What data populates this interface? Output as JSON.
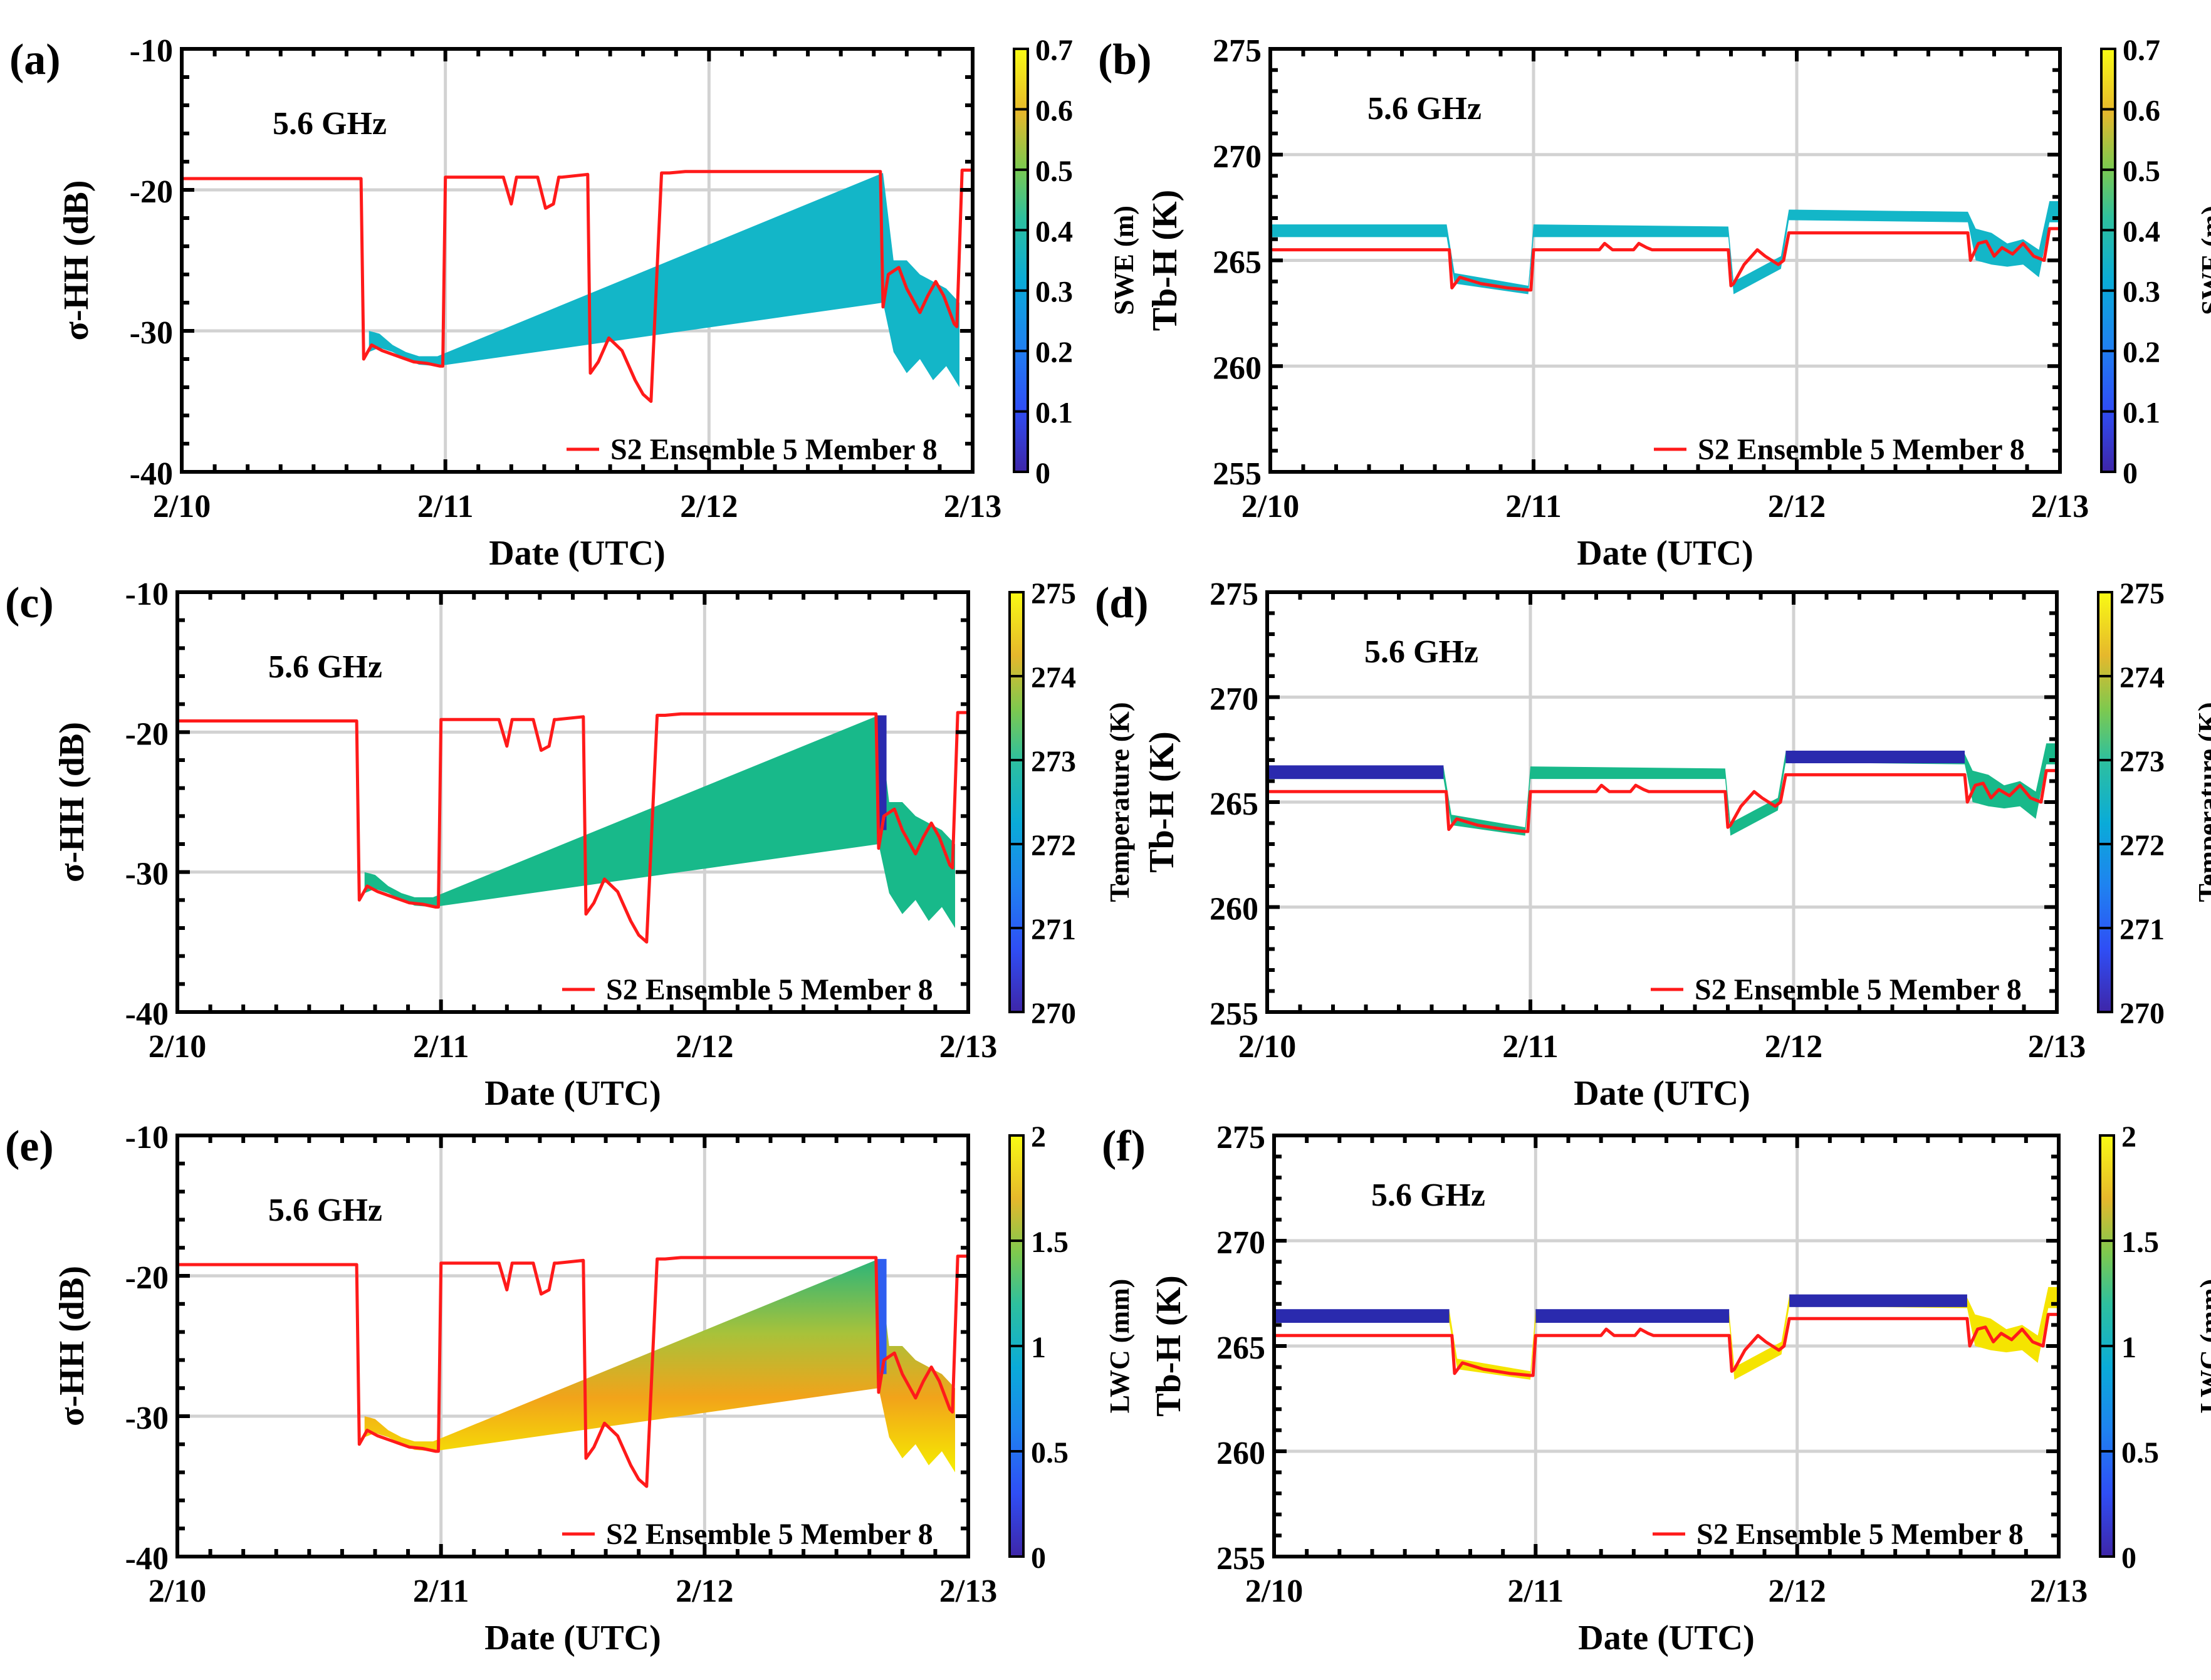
{
  "figure": {
    "legend_label": "S2 Ensemble 5 Member 8",
    "freq_label": "5.6 GHz",
    "x_ticks": [
      "2/10",
      "2/11",
      "2/12",
      "2/13"
    ],
    "xlabel": "Date (UTC)",
    "colors": {
      "red_line": "#ff1a1a",
      "band_cyan": "#13b6c8",
      "band_green": "#18b98a",
      "band_blue": "#2a2aae",
      "band_yellow": "#f5e400",
      "band_orange": "#f2a31a"
    }
  },
  "chart_data": [
    {
      "panel": "(a)",
      "type": "line",
      "quantity": "sigma",
      "color_by": "swe",
      "ylabel": "σ-HH (dB)",
      "ylim": [
        -40,
        -10
      ],
      "yticks": [
        "-10",
        "-20",
        "-30",
        "-40"
      ],
      "xlim": [
        0,
        3
      ],
      "colorbar_label": "SWE (m)",
      "colorbar_ticks": [
        "0",
        "0.1",
        "0.2",
        "0.3",
        "0.4",
        "0.5",
        "0.6",
        "0.7"
      ],
      "series": [
        {
          "name": "S2 Ensemble 5 Member 8",
          "x": [
            0,
            0.68,
            0.69,
            0.72,
            0.76,
            0.82,
            0.88,
            0.93,
            0.98,
            0.99,
            1.0,
            1.22,
            1.25,
            1.27,
            1.28,
            1.35,
            1.38,
            1.41,
            1.43,
            1.44,
            1.54,
            1.55,
            1.58,
            1.62,
            1.67,
            1.72,
            1.75,
            1.78,
            1.82,
            1.85,
            1.91,
            1.94,
            1.95,
            2.65,
            2.66,
            2.68,
            2.72,
            2.75,
            2.8,
            2.83,
            2.86,
            2.89,
            2.93,
            2.94,
            2.96,
            3.0
          ],
          "y": [
            -19.2,
            -19.2,
            -32.0,
            -31.0,
            -31.4,
            -31.8,
            -32.2,
            -32.3,
            -32.5,
            -32.5,
            -19.1,
            -19.1,
            -21.0,
            -19.1,
            -19.1,
            -19.1,
            -21.3,
            -21.0,
            -19.1,
            -19.1,
            -18.9,
            -33.0,
            -32.2,
            -30.5,
            -31.4,
            -33.5,
            -34.5,
            -35.0,
            -18.8,
            -18.8,
            -18.7,
            -18.7,
            -18.7,
            -18.7,
            -28.3,
            -26.0,
            -25.5,
            -27.0,
            -28.7,
            -27.5,
            -26.5,
            -27.5,
            -29.5,
            -29.7,
            -18.6,
            -18.6
          ]
        }
      ],
      "ensemble_band": {
        "x": [
          0.71,
          0.75,
          0.8,
          0.85,
          0.9,
          0.97,
          2.66,
          2.7,
          2.75,
          2.8,
          2.85,
          2.9,
          2.95
        ],
        "upper": [
          -30.0,
          -30.2,
          -31.0,
          -31.5,
          -31.8,
          -31.8,
          -18.8,
          -25.0,
          -25.0,
          -26.0,
          -26.5,
          -27.0,
          -28.0
        ],
        "lower": [
          -31.5,
          -31.2,
          -31.5,
          -32.0,
          -32.4,
          -32.5,
          -28.0,
          -31.5,
          -33.0,
          -32.0,
          -33.5,
          -32.5,
          -34.0
        ]
      }
    },
    {
      "panel": "(b)",
      "type": "line",
      "quantity": "tb",
      "color_by": "swe",
      "ylabel": "Tb-H (K)",
      "ylim": [
        255,
        275
      ],
      "yticks": [
        "255",
        "260",
        "265",
        "270",
        "275"
      ],
      "xlim": [
        0,
        3
      ],
      "colorbar_label": "SWE (m)",
      "colorbar_ticks": [
        "0",
        "0.1",
        "0.2",
        "0.3",
        "0.4",
        "0.5",
        "0.6",
        "0.7"
      ],
      "series": [
        {
          "name": "S2 Ensemble 5 Member 8",
          "x": [
            0,
            0.68,
            0.69,
            0.72,
            0.8,
            0.9,
            0.98,
            0.99,
            1.0,
            1.25,
            1.27,
            1.3,
            1.38,
            1.4,
            1.43,
            1.45,
            1.74,
            1.75,
            1.76,
            1.8,
            1.85,
            1.88,
            1.93,
            1.95,
            1.97,
            2.65,
            2.66,
            2.69,
            2.72,
            2.75,
            2.78,
            2.82,
            2.86,
            2.9,
            2.94,
            2.96,
            3.0
          ],
          "y": [
            265.5,
            265.5,
            263.7,
            264.2,
            263.9,
            263.7,
            263.6,
            263.6,
            265.5,
            265.5,
            265.8,
            265.5,
            265.5,
            265.8,
            265.6,
            265.5,
            265.5,
            263.8,
            263.9,
            264.8,
            265.5,
            265.2,
            264.8,
            265.0,
            266.3,
            266.3,
            265.0,
            265.8,
            265.9,
            265.2,
            265.6,
            265.3,
            265.8,
            265.2,
            265.0,
            266.5,
            266.5
          ]
        }
      ],
      "ensemble_band": {
        "x": [
          0.0,
          0.67,
          0.7,
          0.98,
          1.0,
          1.74,
          1.76,
          1.94,
          1.97,
          2.65,
          2.68,
          2.74,
          2.8,
          2.86,
          2.92,
          2.96,
          3.0
        ],
        "upper": [
          266.7,
          266.7,
          264.4,
          263.8,
          266.7,
          266.6,
          264.0,
          265.2,
          267.4,
          267.3,
          266.5,
          266.3,
          265.8,
          266.0,
          265.5,
          267.8,
          267.8
        ],
        "lower": [
          266.1,
          266.1,
          263.9,
          263.4,
          266.1,
          266.1,
          263.4,
          264.6,
          266.9,
          266.8,
          265.0,
          264.8,
          264.7,
          264.8,
          264.2,
          266.8,
          266.8
        ]
      }
    },
    {
      "panel": "(c)",
      "type": "line",
      "quantity": "sigma",
      "color_by": "temp",
      "ylabel": "σ-HH (dB)",
      "ylim": [
        -40,
        -10
      ],
      "yticks": [
        "-10",
        "-20",
        "-30",
        "-40"
      ],
      "xlim": [
        0,
        3
      ],
      "colorbar_label": "Temperature (K)",
      "colorbar_ticks": [
        "270",
        "271",
        "272",
        "273",
        "274",
        "275"
      ],
      "series": [
        {
          "name": "S2 Ensemble 5 Member 8",
          "x": [
            0,
            0.68,
            0.69,
            0.72,
            0.76,
            0.82,
            0.88,
            0.93,
            0.98,
            0.99,
            1.0,
            1.22,
            1.25,
            1.27,
            1.28,
            1.35,
            1.38,
            1.41,
            1.43,
            1.44,
            1.54,
            1.55,
            1.58,
            1.62,
            1.67,
            1.72,
            1.75,
            1.78,
            1.82,
            1.85,
            1.91,
            1.94,
            1.95,
            2.65,
            2.66,
            2.68,
            2.72,
            2.75,
            2.8,
            2.83,
            2.86,
            2.89,
            2.93,
            2.94,
            2.96,
            3.0
          ],
          "y": [
            -19.2,
            -19.2,
            -32.0,
            -31.0,
            -31.4,
            -31.8,
            -32.2,
            -32.3,
            -32.5,
            -32.5,
            -19.1,
            -19.1,
            -21.0,
            -19.1,
            -19.1,
            -19.1,
            -21.3,
            -21.0,
            -19.1,
            -19.1,
            -18.9,
            -33.0,
            -32.2,
            -30.5,
            -31.4,
            -33.5,
            -34.5,
            -35.0,
            -18.8,
            -18.8,
            -18.7,
            -18.7,
            -18.7,
            -18.7,
            -28.3,
            -26.0,
            -25.5,
            -27.0,
            -28.7,
            -27.5,
            -26.5,
            -27.5,
            -29.5,
            -29.7,
            -18.6,
            -18.6
          ]
        }
      ],
      "ensemble_band": {
        "x": [
          0.71,
          0.75,
          0.8,
          0.85,
          0.9,
          0.97,
          2.66,
          2.7,
          2.75,
          2.8,
          2.85,
          2.9,
          2.95
        ],
        "upper": [
          -30.0,
          -30.2,
          -31.0,
          -31.5,
          -31.8,
          -31.8,
          -18.8,
          -25.0,
          -25.0,
          -26.0,
          -26.5,
          -27.0,
          -28.0
        ],
        "lower": [
          -31.5,
          -31.2,
          -31.5,
          -32.0,
          -32.4,
          -32.5,
          -28.0,
          -31.5,
          -33.0,
          -32.0,
          -33.5,
          -32.5,
          -34.0
        ]
      }
    },
    {
      "panel": "(d)",
      "type": "line",
      "quantity": "tb",
      "color_by": "temp",
      "ylabel": "Tb-H (K)",
      "ylim": [
        255,
        275
      ],
      "yticks": [
        "255",
        "260",
        "265",
        "270",
        "275"
      ],
      "xlim": [
        0,
        3
      ],
      "colorbar_label": "Temperature (K)",
      "colorbar_ticks": [
        "270",
        "271",
        "272",
        "273",
        "274",
        "275"
      ],
      "series": [
        {
          "name": "S2 Ensemble 5 Member 8",
          "x": [
            0,
            0.68,
            0.69,
            0.72,
            0.8,
            0.9,
            0.98,
            0.99,
            1.0,
            1.25,
            1.27,
            1.3,
            1.38,
            1.4,
            1.43,
            1.45,
            1.74,
            1.75,
            1.76,
            1.8,
            1.85,
            1.88,
            1.93,
            1.95,
            1.97,
            2.65,
            2.66,
            2.69,
            2.72,
            2.75,
            2.78,
            2.82,
            2.86,
            2.9,
            2.94,
            2.96,
            3.0
          ],
          "y": [
            265.5,
            265.5,
            263.7,
            264.2,
            263.9,
            263.7,
            263.6,
            263.6,
            265.5,
            265.5,
            265.8,
            265.5,
            265.5,
            265.8,
            265.6,
            265.5,
            265.5,
            263.8,
            263.9,
            264.8,
            265.5,
            265.2,
            264.8,
            265.0,
            266.3,
            266.3,
            265.0,
            265.8,
            265.9,
            265.2,
            265.6,
            265.3,
            265.8,
            265.2,
            265.0,
            266.5,
            266.5
          ]
        }
      ],
      "ensemble_band": {
        "x": [
          0.0,
          0.67,
          0.7,
          0.98,
          1.0,
          1.74,
          1.76,
          1.94,
          1.97,
          2.65,
          2.68,
          2.74,
          2.8,
          2.86,
          2.92,
          2.96,
          3.0
        ],
        "upper": [
          266.7,
          266.7,
          264.4,
          263.8,
          266.7,
          266.6,
          264.0,
          265.2,
          267.4,
          267.3,
          266.5,
          266.3,
          265.8,
          266.0,
          265.5,
          267.8,
          267.8
        ],
        "lower": [
          266.1,
          266.1,
          263.9,
          263.4,
          266.1,
          266.1,
          263.4,
          264.6,
          266.9,
          266.8,
          265.0,
          264.8,
          264.7,
          264.8,
          264.2,
          266.8,
          266.8
        ]
      }
    },
    {
      "panel": "(e)",
      "type": "line",
      "quantity": "sigma",
      "color_by": "lwc",
      "ylabel": "σ-HH (dB)",
      "ylim": [
        -40,
        -10
      ],
      "yticks": [
        "-10",
        "-20",
        "-30",
        "-40"
      ],
      "xlim": [
        0,
        3
      ],
      "colorbar_label": "LWC (mm)",
      "colorbar_ticks": [
        "0",
        "0.5",
        "1",
        "1.5",
        "2"
      ],
      "series": [
        {
          "name": "S2 Ensemble 5 Member 8",
          "x": [
            0,
            0.68,
            0.69,
            0.72,
            0.76,
            0.82,
            0.88,
            0.93,
            0.98,
            0.99,
            1.0,
            1.22,
            1.25,
            1.27,
            1.28,
            1.35,
            1.38,
            1.41,
            1.43,
            1.44,
            1.54,
            1.55,
            1.58,
            1.62,
            1.67,
            1.72,
            1.75,
            1.78,
            1.82,
            1.85,
            1.91,
            1.94,
            1.95,
            2.65,
            2.66,
            2.68,
            2.72,
            2.75,
            2.8,
            2.83,
            2.86,
            2.89,
            2.93,
            2.94,
            2.96,
            3.0
          ],
          "y": [
            -19.2,
            -19.2,
            -32.0,
            -31.0,
            -31.4,
            -31.8,
            -32.2,
            -32.3,
            -32.5,
            -32.5,
            -19.1,
            -19.1,
            -21.0,
            -19.1,
            -19.1,
            -19.1,
            -21.3,
            -21.0,
            -19.1,
            -19.1,
            -18.9,
            -33.0,
            -32.2,
            -30.5,
            -31.4,
            -33.5,
            -34.5,
            -35.0,
            -18.8,
            -18.8,
            -18.7,
            -18.7,
            -18.7,
            -18.7,
            -28.3,
            -26.0,
            -25.5,
            -27.0,
            -28.7,
            -27.5,
            -26.5,
            -27.5,
            -29.5,
            -29.7,
            -18.6,
            -18.6
          ]
        }
      ],
      "ensemble_band": {
        "x": [
          0.71,
          0.75,
          0.8,
          0.85,
          0.9,
          0.97,
          2.66,
          2.7,
          2.75,
          2.8,
          2.85,
          2.9,
          2.95
        ],
        "upper": [
          -30.0,
          -30.2,
          -31.0,
          -31.5,
          -31.8,
          -31.8,
          -18.8,
          -25.0,
          -25.0,
          -26.0,
          -26.5,
          -27.0,
          -28.0
        ],
        "lower": [
          -31.5,
          -31.2,
          -31.5,
          -32.0,
          -32.4,
          -32.5,
          -28.0,
          -31.5,
          -33.0,
          -32.0,
          -33.5,
          -32.5,
          -34.0
        ]
      }
    },
    {
      "panel": "(f)",
      "type": "line",
      "quantity": "tb",
      "color_by": "lwc",
      "ylabel": "Tb-H (K)",
      "ylim": [
        255,
        275
      ],
      "yticks": [
        "255",
        "260",
        "265",
        "270",
        "275"
      ],
      "xlim": [
        0,
        3
      ],
      "colorbar_label": "LWC (mm)",
      "colorbar_ticks": [
        "0",
        "0.5",
        "1",
        "1.5",
        "2"
      ],
      "series": [
        {
          "name": "S2 Ensemble 5 Member 8",
          "x": [
            0,
            0.68,
            0.69,
            0.72,
            0.8,
            0.9,
            0.98,
            0.99,
            1.0,
            1.25,
            1.27,
            1.3,
            1.38,
            1.4,
            1.43,
            1.45,
            1.74,
            1.75,
            1.76,
            1.8,
            1.85,
            1.88,
            1.93,
            1.95,
            1.97,
            2.65,
            2.66,
            2.69,
            2.72,
            2.75,
            2.78,
            2.82,
            2.86,
            2.9,
            2.94,
            2.96,
            3.0
          ],
          "y": [
            265.5,
            265.5,
            263.7,
            264.2,
            263.9,
            263.7,
            263.6,
            263.6,
            265.5,
            265.5,
            265.8,
            265.5,
            265.5,
            265.8,
            265.6,
            265.5,
            265.5,
            263.8,
            263.9,
            264.8,
            265.5,
            265.2,
            264.8,
            265.0,
            266.3,
            266.3,
            265.0,
            265.8,
            265.9,
            265.2,
            265.6,
            265.3,
            265.8,
            265.2,
            265.0,
            266.5,
            266.5
          ]
        }
      ],
      "ensemble_band": {
        "x": [
          0.0,
          0.67,
          0.7,
          0.98,
          1.0,
          1.74,
          1.76,
          1.94,
          1.97,
          2.65,
          2.68,
          2.74,
          2.8,
          2.86,
          2.92,
          2.96,
          3.0
        ],
        "upper": [
          266.7,
          266.7,
          264.4,
          263.8,
          266.7,
          266.6,
          264.0,
          265.2,
          267.4,
          267.3,
          266.5,
          266.3,
          265.8,
          266.0,
          265.5,
          267.8,
          267.8
        ],
        "lower": [
          266.1,
          266.1,
          263.9,
          263.4,
          266.1,
          266.1,
          263.4,
          264.6,
          266.9,
          266.8,
          265.0,
          264.8,
          264.7,
          264.8,
          264.2,
          266.8,
          266.8
        ]
      }
    }
  ]
}
